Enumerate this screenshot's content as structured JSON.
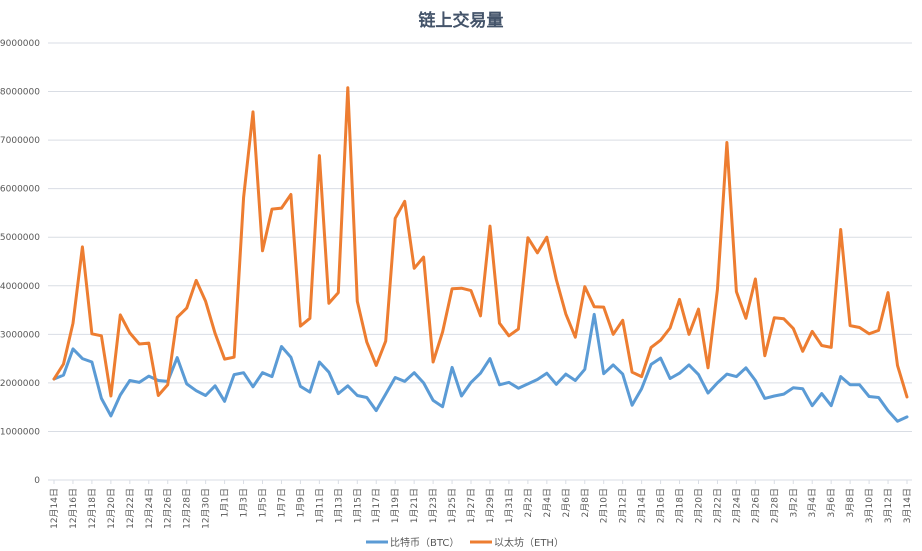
{
  "chart_data": {
    "type": "line",
    "title": "链上交易量",
    "xlabel": "",
    "ylabel": "",
    "ylim": [
      0,
      9000000
    ],
    "yticks": [
      0,
      1000000,
      2000000,
      3000000,
      4000000,
      5000000,
      6000000,
      7000000,
      8000000,
      9000000
    ],
    "grid": true,
    "legend_position": "bottom",
    "x": [
      "12月14日",
      "12月15日",
      "12月16日",
      "12月17日",
      "12月18日",
      "12月19日",
      "12月20日",
      "12月21日",
      "12月22日",
      "12月23日",
      "12月24日",
      "12月25日",
      "12月26日",
      "12月27日",
      "12月28日",
      "12月29日",
      "12月30日",
      "12月31日",
      "1月1日",
      "1月2日",
      "1月3日",
      "1月4日",
      "1月5日",
      "1月6日",
      "1月7日",
      "1月8日",
      "1月9日",
      "1月10日",
      "1月11日",
      "1月12日",
      "1月13日",
      "1月14日",
      "1月15日",
      "1月16日",
      "1月17日",
      "1月18日",
      "1月19日",
      "1月20日",
      "1月21日",
      "1月22日",
      "1月23日",
      "1月24日",
      "1月25日",
      "1月26日",
      "1月27日",
      "1月28日",
      "1月29日",
      "1月30日",
      "1月31日",
      "2月1日",
      "2月2日",
      "2月3日",
      "2月4日",
      "2月5日",
      "2月6日",
      "2月7日",
      "2月8日",
      "2月9日",
      "2月10日",
      "2月11日",
      "2月12日",
      "2月13日",
      "2月14日",
      "2月15日",
      "2月16日",
      "2月17日",
      "2月18日",
      "2月19日",
      "2月20日",
      "2月21日",
      "2月22日",
      "2月23日",
      "2月24日",
      "2月25日",
      "2月26日",
      "2月27日",
      "2月28日",
      "3月1日",
      "3月2日",
      "3月3日",
      "3月4日",
      "3月5日",
      "3月6日",
      "3月7日",
      "3月8日",
      "3月9日",
      "3月10日",
      "3月11日",
      "3月12日",
      "3月13日",
      "3月14日"
    ],
    "xtick_labels": [
      "12月14日",
      "12月16日",
      "12月18日",
      "12月20日",
      "12月22日",
      "12月24日",
      "12月26日",
      "12月28日",
      "12月30日",
      "1月1日",
      "1月3日",
      "1月5日",
      "1月7日",
      "1月9日",
      "1月11日",
      "1月13日",
      "1月15日",
      "1月17日",
      "1月19日",
      "1月21日",
      "1月23日",
      "1月25日",
      "1月27日",
      "1月29日",
      "1月31日",
      "2月2日",
      "2月4日",
      "2月6日",
      "2月8日",
      "2月10日",
      "2月12日",
      "2月14日",
      "2月16日",
      "2月18日",
      "2月20日",
      "2月22日",
      "2月24日",
      "2月26日",
      "2月28日",
      "3月2日",
      "3月4日",
      "3月6日",
      "3月8日",
      "3月10日",
      "3月12日",
      "3月14日"
    ],
    "series": [
      {
        "name": "比特币（BTC）",
        "color": "#5b9bd5",
        "values": [
          2080000,
          2160000,
          2700000,
          2500000,
          2430000,
          1680000,
          1320000,
          1750000,
          2050000,
          2010000,
          2140000,
          2050000,
          2030000,
          2520000,
          1980000,
          1840000,
          1740000,
          1940000,
          1620000,
          2170000,
          2210000,
          1920000,
          2210000,
          2130000,
          2750000,
          2530000,
          1930000,
          1810000,
          2430000,
          2220000,
          1780000,
          1940000,
          1740000,
          1700000,
          1430000,
          1770000,
          2110000,
          2030000,
          2210000,
          2000000,
          1640000,
          1510000,
          2320000,
          1730000,
          2010000,
          2200000,
          2500000,
          1960000,
          2010000,
          1890000,
          1980000,
          2070000,
          2200000,
          1970000,
          2180000,
          2050000,
          2280000,
          3410000,
          2190000,
          2370000,
          2180000,
          1540000,
          1880000,
          2380000,
          2510000,
          2090000,
          2200000,
          2370000,
          2170000,
          1790000,
          2000000,
          2180000,
          2130000,
          2310000,
          2050000,
          1680000,
          1730000,
          1770000,
          1900000,
          1880000,
          1530000,
          1780000,
          1530000,
          2130000,
          1960000,
          1960000,
          1720000,
          1700000,
          1430000,
          1210000,
          1300000
        ]
      },
      {
        "name": "以太坊（ETH）",
        "color": "#ed7d31",
        "values": [
          2080000,
          2390000,
          3230000,
          4800000,
          3010000,
          2970000,
          1730000,
          3400000,
          3030000,
          2800000,
          2820000,
          1740000,
          1960000,
          3350000,
          3540000,
          4110000,
          3680000,
          3020000,
          2490000,
          2530000,
          5820000,
          7580000,
          4720000,
          5580000,
          5600000,
          5880000,
          3170000,
          3330000,
          6680000,
          3640000,
          3860000,
          8080000,
          3680000,
          2840000,
          2360000,
          2860000,
          5390000,
          5740000,
          4360000,
          4590000,
          2430000,
          3050000,
          3940000,
          3950000,
          3900000,
          3380000,
          5230000,
          3230000,
          2970000,
          3110000,
          4990000,
          4680000,
          5000000,
          4130000,
          3420000,
          2940000,
          3980000,
          3570000,
          3560000,
          3000000,
          3290000,
          2220000,
          2130000,
          2730000,
          2880000,
          3130000,
          3720000,
          3000000,
          3520000,
          2310000,
          3920000,
          6950000,
          3880000,
          3330000,
          4140000,
          2560000,
          3340000,
          3320000,
          3120000,
          2650000,
          3060000,
          2770000,
          2730000,
          5160000,
          3180000,
          3140000,
          3010000,
          3080000,
          3860000,
          2360000,
          1710000
        ]
      }
    ]
  }
}
